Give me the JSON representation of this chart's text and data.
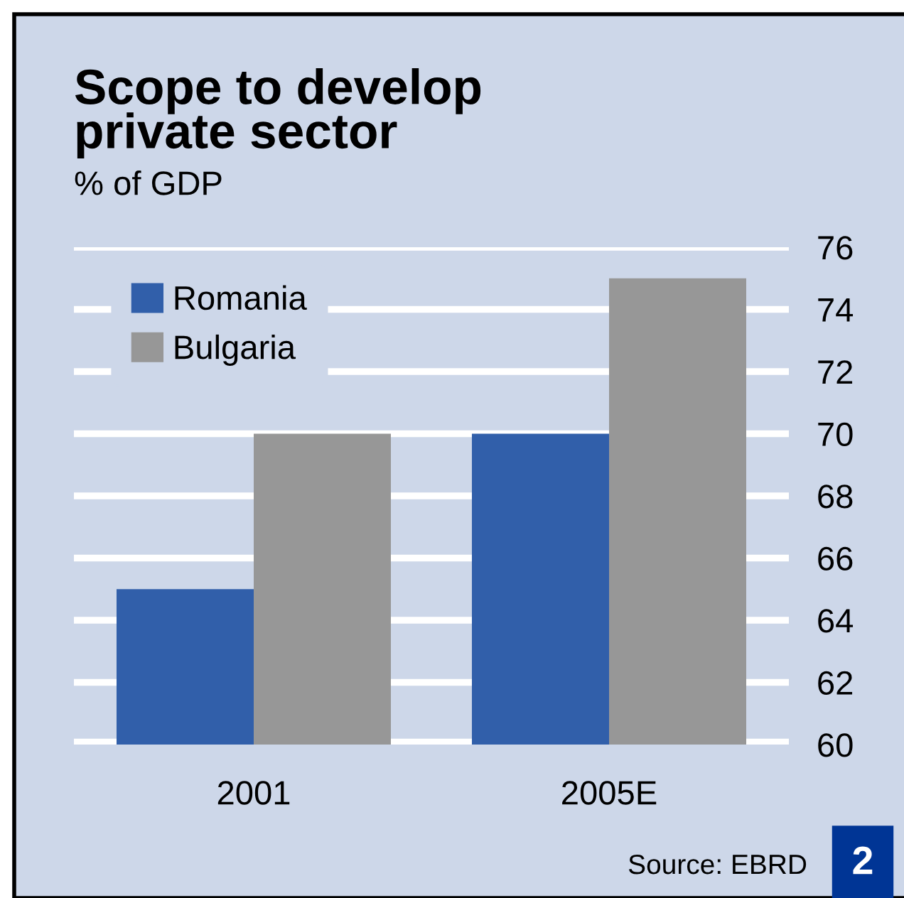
{
  "chart_data": {
    "type": "bar",
    "title": "Scope to develop\nprivate sector",
    "subtitle": "% of GDP",
    "categories": [
      "2001",
      "2005E"
    ],
    "series": [
      {
        "name": "Romania",
        "color": "#315faa",
        "values": [
          65,
          70
        ]
      },
      {
        "name": "Bulgaria",
        "color": "#979797",
        "values": [
          70,
          75
        ]
      }
    ],
    "ylim": [
      60,
      76
    ],
    "yticks": [
      60,
      62,
      64,
      66,
      68,
      70,
      72,
      74,
      76
    ],
    "grid": "y",
    "legend": "top left",
    "annotations": [
      "Source: EBRD",
      "2"
    ]
  }
}
